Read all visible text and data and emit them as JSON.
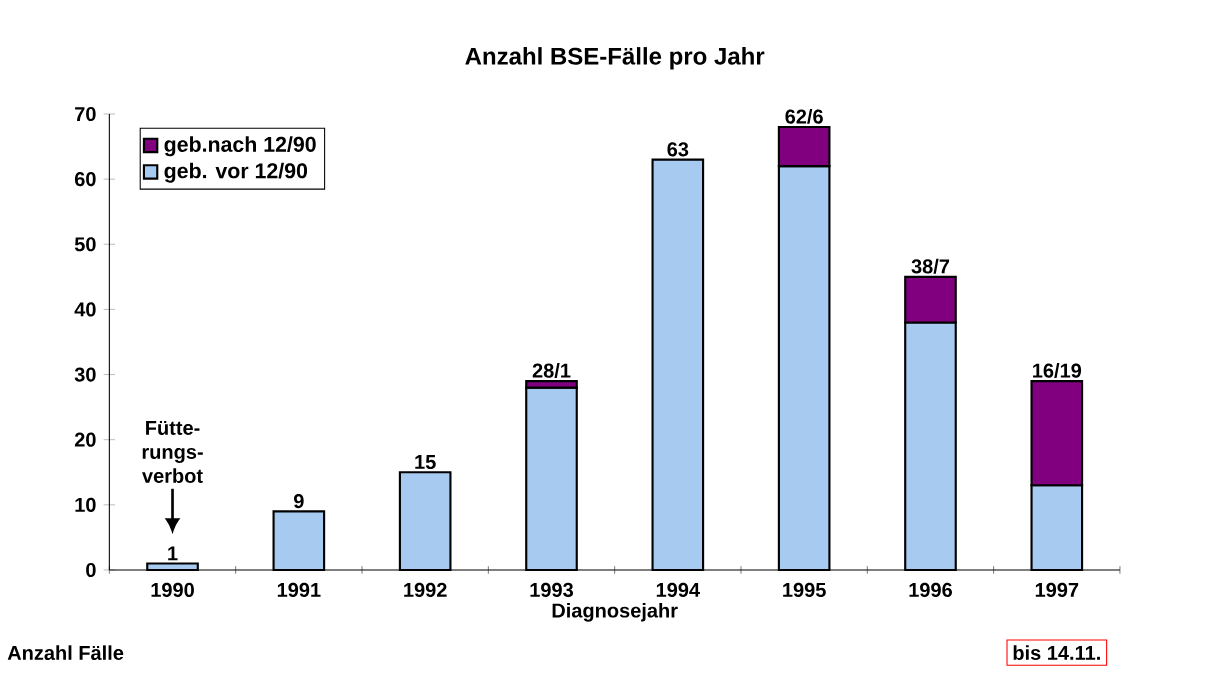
{
  "chart_data": {
    "type": "bar",
    "stacked": true,
    "title": "Anzahl BSE-Fälle pro Jahr",
    "xlabel": "Diagnosejahr",
    "ylabel": "Anzahl Fälle",
    "categories": [
      "1990",
      "1991",
      "1992",
      "1993",
      "1994",
      "1995",
      "1996",
      "1997"
    ],
    "series": [
      {
        "name": "geb. vor 12/90",
        "color": "#a6caf0",
        "values": [
          1,
          9,
          15,
          28,
          63,
          62,
          38,
          13
        ]
      },
      {
        "name": "geb.nach 12/90",
        "color": "#800080",
        "values": [
          null,
          null,
          null,
          1,
          null,
          6,
          7,
          16
        ]
      }
    ],
    "totals": [
      "1",
      "9",
      "15",
      "28/1",
      "63",
      "62/6",
      "38/7",
      "16/19"
    ],
    "ylim": [
      0,
      70
    ],
    "yticks": [
      0,
      10,
      20,
      30,
      40,
      50,
      60,
      70
    ],
    "grid": false,
    "legend": "top left",
    "annotations": [
      "Fütte- rungs- verbot",
      "bis 14.11."
    ]
  }
}
